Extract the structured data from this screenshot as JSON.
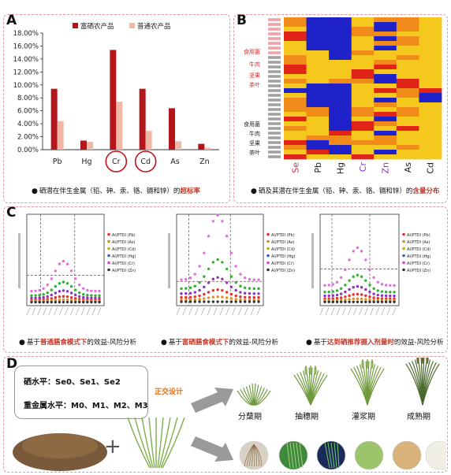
{
  "panelA": {
    "label": "A",
    "legend": [
      "富硒农产品",
      "普通农产品"
    ],
    "caption_pre": "硒潜在伴生金属（铅、砷、汞、铬、镉和锌）的",
    "caption_hl": "超标率",
    "chart_data": {
      "type": "bar",
      "categories": [
        "Pb",
        "Hg",
        "Cr",
        "Cd",
        "As",
        "Zn"
      ],
      "series": [
        {
          "name": "富硒农产品",
          "values": [
            9.4,
            1.4,
            15.4,
            9.4,
            6.4,
            0.9
          ],
          "color": "#b4161c"
        },
        {
          "name": "普通农产品",
          "values": [
            4.4,
            1.2,
            7.4,
            2.9,
            1.3,
            0.3
          ],
          "color": "#f2b8a6"
        }
      ],
      "ylim": [
        0,
        18
      ],
      "yticks": [
        "0.00%",
        "2.00%",
        "4.00%",
        "6.00%",
        "8.00%",
        "10.00%",
        "12.00%",
        "14.00%",
        "16.00%",
        "18.00%"
      ],
      "circled": [
        "Cr",
        "Cd"
      ]
    }
  },
  "panelB": {
    "label": "B",
    "caption_pre": "硒及其潜在伴生金属（铅、砷、汞、铬、镉和锌）的",
    "caption_hl": "含量分布",
    "row_labels_left": [
      "食用菌",
      "牛肉",
      "坚果",
      "茶叶",
      "食用菌",
      "牛肉",
      "坚果",
      "茶叶"
    ],
    "column_labels": [
      "Se",
      "Pb",
      "Hg",
      "Cr",
      "Zn",
      "As",
      "Cd"
    ],
    "heatmap_colors": [
      "#1e22c8",
      "#e02418",
      "#f08a18",
      "#f5c81e"
    ]
  },
  "panelC": {
    "label": "C",
    "captions": [
      {
        "pre": "基于",
        "hl": "普通膳食模式下",
        "post": "的效益-风险分析"
      },
      {
        "pre": "基于",
        "hl": "富硒膳食模式下",
        "post": "的效益-风险分析"
      },
      {
        "pre": "基于",
        "hl": "达到硒推荐摄入剂量时",
        "post": "的效益-风险分析"
      }
    ],
    "legend": [
      "AI/PTDI (Pb)",
      "AI/PTDI (As)",
      "AI/PTDI (Cd)",
      "AI/PTDI (Hg)",
      "AI/PTDI (Cr)",
      "AI/PTDI (Zn)"
    ]
  },
  "panelD": {
    "label": "D",
    "se_level": "硒水平：Se0、Se1、Se2",
    "metal_level": "重金属水平：M0、M1、M2、M3",
    "design": "正交设计",
    "plus": "+",
    "stages": [
      "分蘖期",
      "抽穗期",
      "灌浆期",
      "成熟期"
    ]
  }
}
